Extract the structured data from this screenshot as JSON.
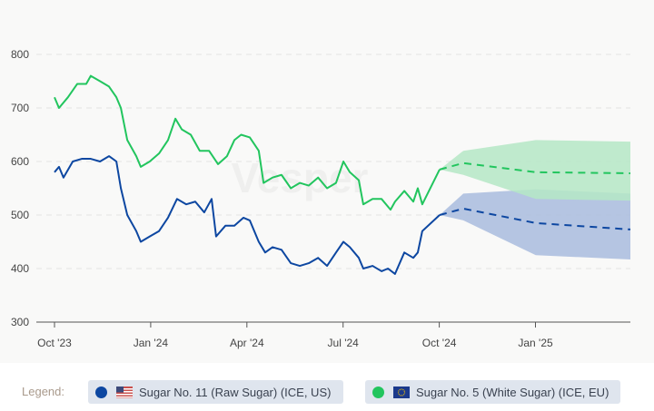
{
  "chart_data": {
    "type": "line",
    "x_unit": "months since Oct 2023",
    "xlim": [
      0,
      17.96
    ],
    "ylim": [
      300,
      800
    ],
    "yticks": [
      300,
      400,
      500,
      600,
      700,
      800
    ],
    "xticks": [
      {
        "x": 0,
        "label": "Oct '23"
      },
      {
        "x": 3,
        "label": "Jan '24"
      },
      {
        "x": 6,
        "label": "Apr '24"
      },
      {
        "x": 9,
        "label": "Jul '24"
      },
      {
        "x": 12,
        "label": "Oct '24"
      },
      {
        "x": 15,
        "label": "Jan '25"
      }
    ],
    "watermark": "Vesper",
    "series": [
      {
        "name": "Sugar No. 11 (Raw Sugar) (ICE, US)",
        "color": "#0d47a1",
        "band_color": "#a9bcde",
        "x": [
          0,
          0.14,
          0.28,
          0.57,
          0.85,
          1.13,
          1.42,
          1.7,
          1.93,
          2.07,
          2.27,
          2.55,
          2.69,
          2.97,
          3.26,
          3.54,
          3.82,
          4.11,
          4.39,
          4.67,
          4.9,
          5.04,
          5.33,
          5.61,
          5.89,
          6.09,
          6.37,
          6.57,
          6.8,
          7.08,
          7.37,
          7.65,
          7.93,
          8.22,
          8.5,
          8.78,
          9.01,
          9.21,
          9.49,
          9.63,
          9.92,
          10.2,
          10.4,
          10.62,
          10.91,
          11.19,
          11.33,
          11.47,
          12.01
        ],
        "y": [
          580,
          590,
          570,
          600,
          605,
          605,
          600,
          610,
          600,
          550,
          500,
          470,
          450,
          460,
          470,
          495,
          530,
          520,
          525,
          505,
          530,
          460,
          480,
          480,
          495,
          490,
          450,
          430,
          440,
          435,
          410,
          405,
          410,
          420,
          405,
          430,
          450,
          440,
          420,
          400,
          405,
          395,
          400,
          390,
          430,
          420,
          430,
          470,
          500
        ],
        "forecast": {
          "x": [
            12.01,
            12.75,
            15.01,
            17.96
          ],
          "y": [
            500,
            512,
            485,
            473
          ],
          "upper": [
            500,
            540,
            548,
            540
          ],
          "lower": [
            500,
            490,
            425,
            417
          ]
        }
      },
      {
        "name": "Sugar No. 5 (White Sugar) (ICE, EU)",
        "color": "#22c55e",
        "band_color": "#b5e8c6",
        "x": [
          0,
          0.14,
          0.42,
          0.71,
          0.99,
          1.13,
          1.42,
          1.7,
          1.93,
          2.07,
          2.27,
          2.55,
          2.69,
          2.97,
          3.26,
          3.54,
          3.77,
          3.97,
          4.25,
          4.53,
          4.82,
          5.1,
          5.38,
          5.61,
          5.82,
          6.09,
          6.37,
          6.52,
          6.8,
          7.08,
          7.37,
          7.65,
          7.93,
          8.22,
          8.5,
          8.78,
          9.01,
          9.21,
          9.49,
          9.63,
          9.92,
          10.2,
          10.48,
          10.62,
          10.91,
          11.19,
          11.33,
          11.47,
          12.01
        ],
        "y": [
          720,
          700,
          720,
          745,
          745,
          760,
          750,
          740,
          720,
          700,
          640,
          610,
          590,
          600,
          615,
          640,
          680,
          660,
          650,
          620,
          620,
          595,
          610,
          640,
          650,
          645,
          620,
          560,
          570,
          575,
          550,
          560,
          555,
          570,
          550,
          560,
          600,
          580,
          565,
          520,
          530,
          530,
          510,
          525,
          545,
          525,
          550,
          520,
          585
        ],
        "forecast": {
          "x": [
            12.01,
            12.75,
            15.01,
            17.96
          ],
          "y": [
            585,
            597,
            580,
            578
          ],
          "upper": [
            585,
            620,
            640,
            637
          ],
          "lower": [
            585,
            575,
            530,
            527
          ]
        }
      }
    ]
  },
  "legend": {
    "label": "Legend:",
    "items": [
      "Sugar No. 11 (Raw Sugar) (ICE, US)",
      "Sugar No. 5 (White Sugar) (ICE, EU)"
    ]
  }
}
